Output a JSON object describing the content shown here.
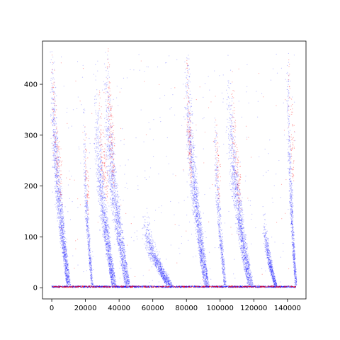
{
  "chart_data": {
    "type": "scatter",
    "title": "",
    "xlabel": "",
    "ylabel": "",
    "xlim": [
      -5500,
      151000
    ],
    "ylim": [
      -22,
      485
    ],
    "grid": false,
    "legend": "none",
    "x_ticks": [
      0,
      20000,
      40000,
      60000,
      80000,
      100000,
      120000,
      140000
    ],
    "x_tick_labels": [
      "0",
      "20000",
      "40000",
      "60000",
      "80000",
      "100000",
      "120000",
      "140000"
    ],
    "y_ticks": [
      0,
      100,
      200,
      300,
      400
    ],
    "y_tick_labels": [
      "0",
      "100",
      "200",
      "300",
      "400"
    ],
    "series": [
      {
        "color": "#0000ff",
        "alpha": 0.25,
        "marker_size": 1,
        "clusters": [
          {
            "x_start": 0,
            "x_end": 10000,
            "y_start": 445,
            "y_end": 5,
            "count": 1400
          },
          {
            "x_start": 19000,
            "x_end": 24000,
            "y_start": 325,
            "y_end": 5,
            "count": 500
          },
          {
            "x_start": 26000,
            "x_end": 37000,
            "y_start": 380,
            "y_end": 5,
            "count": 1300
          },
          {
            "x_start": 32000,
            "x_end": 45000,
            "y_start": 430,
            "y_end": 5,
            "count": 1400
          },
          {
            "x_start": 55000,
            "x_end": 70000,
            "y_start": 140,
            "y_end": 5,
            "count": 900
          },
          {
            "x_start": 80000,
            "x_end": 92000,
            "y_start": 455,
            "y_end": 5,
            "count": 1500
          },
          {
            "x_start": 97000,
            "x_end": 103000,
            "y_start": 325,
            "y_end": 5,
            "count": 500
          },
          {
            "x_start": 105000,
            "x_end": 118000,
            "y_start": 400,
            "y_end": 5,
            "count": 1400
          },
          {
            "x_start": 126000,
            "x_end": 133000,
            "y_start": 140,
            "y_end": 5,
            "count": 600
          },
          {
            "x_start": 140000,
            "x_end": 145000,
            "y_start": 440,
            "y_end": 5,
            "count": 700
          }
        ],
        "baseline": {
          "x_start": 0,
          "x_end": 145000,
          "y": 2,
          "count": 1400
        },
        "noise_count": 350
      },
      {
        "color": "#ff0000",
        "alpha": 0.35,
        "marker_size": 1,
        "clusters": [
          {
            "x_start": 0,
            "x_end": 6000,
            "y_start": 440,
            "y_end": 200,
            "count": 120
          },
          {
            "x_start": 19500,
            "x_end": 22000,
            "y_start": 320,
            "y_end": 180,
            "count": 60
          },
          {
            "x_start": 28000,
            "x_end": 33000,
            "y_start": 360,
            "y_end": 200,
            "count": 120
          },
          {
            "x_start": 33000,
            "x_end": 37000,
            "y_start": 445,
            "y_end": 250,
            "count": 140
          },
          {
            "x_start": 80000,
            "x_end": 83000,
            "y_start": 445,
            "y_end": 250,
            "count": 120
          },
          {
            "x_start": 97000,
            "x_end": 100000,
            "y_start": 320,
            "y_end": 200,
            "count": 60
          },
          {
            "x_start": 107000,
            "x_end": 112000,
            "y_start": 390,
            "y_end": 180,
            "count": 120
          },
          {
            "x_start": 140500,
            "x_end": 144000,
            "y_start": 430,
            "y_end": 250,
            "count": 70
          }
        ],
        "baseline": {
          "x_start": 0,
          "x_end": 145000,
          "y": 2,
          "count": 500
        },
        "noise_count": 80
      }
    ]
  }
}
